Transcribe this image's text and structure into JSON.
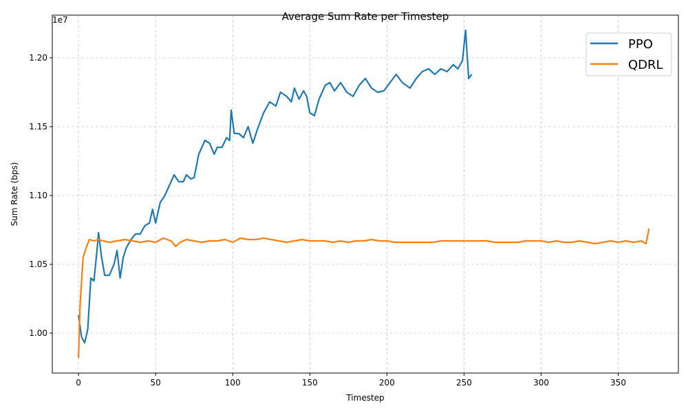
{
  "chart_data": {
    "type": "line",
    "title": "Average Sum Rate per Timestep",
    "xlabel": "Timestep",
    "ylabel": "Sum Rate (bps)",
    "y_offset_label": "1e7",
    "xlim": [
      -17,
      389
    ],
    "ylim": [
      9.71,
      12.31
    ],
    "y_scale_exponent": 7,
    "xticks": [
      0,
      50,
      100,
      150,
      200,
      250,
      300,
      350
    ],
    "yticks": [
      10.0,
      10.5,
      11.0,
      11.5,
      12.0
    ],
    "ytick_labels": [
      "1.00",
      "1.05",
      "1.10",
      "1.15",
      "1.20"
    ],
    "grid": true,
    "legend_position": "top-right",
    "series": [
      {
        "name": "PPO",
        "color": "#1f77b4",
        "points": [
          [
            0,
            10.13
          ],
          [
            2,
            9.97
          ],
          [
            4,
            9.93
          ],
          [
            6,
            10.03
          ],
          [
            8,
            10.4
          ],
          [
            10,
            10.38
          ],
          [
            12,
            10.6
          ],
          [
            13,
            10.73
          ],
          [
            15,
            10.55
          ],
          [
            17,
            10.42
          ],
          [
            20,
            10.42
          ],
          [
            23,
            10.5
          ],
          [
            25,
            10.6
          ],
          [
            27,
            10.4
          ],
          [
            29,
            10.55
          ],
          [
            31,
            10.62
          ],
          [
            34,
            10.68
          ],
          [
            37,
            10.72
          ],
          [
            40,
            10.72
          ],
          [
            43,
            10.78
          ],
          [
            46,
            10.8
          ],
          [
            48,
            10.9
          ],
          [
            50,
            10.8
          ],
          [
            53,
            10.95
          ],
          [
            56,
            11.0
          ],
          [
            58,
            11.05
          ],
          [
            60,
            11.1
          ],
          [
            62,
            11.15
          ],
          [
            65,
            11.1
          ],
          [
            68,
            11.1
          ],
          [
            70,
            11.15
          ],
          [
            73,
            11.12
          ],
          [
            75,
            11.13
          ],
          [
            78,
            11.3
          ],
          [
            82,
            11.4
          ],
          [
            85,
            11.38
          ],
          [
            88,
            11.3
          ],
          [
            90,
            11.35
          ],
          [
            93,
            11.35
          ],
          [
            96,
            11.42
          ],
          [
            98,
            11.4
          ],
          [
            99,
            11.62
          ],
          [
            101,
            11.45
          ],
          [
            104,
            11.45
          ],
          [
            107,
            11.42
          ],
          [
            110,
            11.5
          ],
          [
            113,
            11.38
          ],
          [
            116,
            11.48
          ],
          [
            120,
            11.6
          ],
          [
            124,
            11.68
          ],
          [
            128,
            11.65
          ],
          [
            131,
            11.75
          ],
          [
            135,
            11.72
          ],
          [
            138,
            11.68
          ],
          [
            140,
            11.78
          ],
          [
            143,
            11.7
          ],
          [
            146,
            11.76
          ],
          [
            148,
            11.72
          ],
          [
            150,
            11.6
          ],
          [
            153,
            11.58
          ],
          [
            156,
            11.7
          ],
          [
            160,
            11.8
          ],
          [
            163,
            11.82
          ],
          [
            166,
            11.76
          ],
          [
            170,
            11.82
          ],
          [
            174,
            11.75
          ],
          [
            178,
            11.72
          ],
          [
            182,
            11.8
          ],
          [
            186,
            11.85
          ],
          [
            190,
            11.78
          ],
          [
            194,
            11.75
          ],
          [
            198,
            11.76
          ],
          [
            202,
            11.82
          ],
          [
            206,
            11.88
          ],
          [
            210,
            11.82
          ],
          [
            215,
            11.78
          ],
          [
            219,
            11.85
          ],
          [
            223,
            11.9
          ],
          [
            227,
            11.92
          ],
          [
            231,
            11.88
          ],
          [
            235,
            11.92
          ],
          [
            239,
            11.9
          ],
          [
            243,
            11.95
          ],
          [
            246,
            11.92
          ],
          [
            249,
            11.98
          ],
          [
            251,
            12.2
          ],
          [
            253,
            11.85
          ],
          [
            255,
            11.88
          ]
        ]
      },
      {
        "name": "QDRL",
        "color": "#ff7f0e",
        "points": [
          [
            0,
            9.82
          ],
          [
            1,
            10.2
          ],
          [
            3,
            10.55
          ],
          [
            5,
            10.62
          ],
          [
            7,
            10.68
          ],
          [
            10,
            10.67
          ],
          [
            13,
            10.68
          ],
          [
            16,
            10.67
          ],
          [
            20,
            10.66
          ],
          [
            25,
            10.67
          ],
          [
            30,
            10.68
          ],
          [
            35,
            10.67
          ],
          [
            40,
            10.66
          ],
          [
            45,
            10.67
          ],
          [
            50,
            10.66
          ],
          [
            55,
            10.69
          ],
          [
            60,
            10.67
          ],
          [
            63,
            10.63
          ],
          [
            66,
            10.66
          ],
          [
            70,
            10.68
          ],
          [
            75,
            10.67
          ],
          [
            80,
            10.66
          ],
          [
            85,
            10.67
          ],
          [
            90,
            10.67
          ],
          [
            95,
            10.68
          ],
          [
            100,
            10.66
          ],
          [
            105,
            10.69
          ],
          [
            110,
            10.68
          ],
          [
            115,
            10.68
          ],
          [
            120,
            10.69
          ],
          [
            125,
            10.68
          ],
          [
            130,
            10.67
          ],
          [
            135,
            10.66
          ],
          [
            140,
            10.67
          ],
          [
            145,
            10.68
          ],
          [
            150,
            10.67
          ],
          [
            155,
            10.67
          ],
          [
            160,
            10.67
          ],
          [
            165,
            10.66
          ],
          [
            170,
            10.67
          ],
          [
            175,
            10.66
          ],
          [
            180,
            10.67
          ],
          [
            185,
            10.67
          ],
          [
            190,
            10.68
          ],
          [
            195,
            10.67
          ],
          [
            200,
            10.67
          ],
          [
            205,
            10.66
          ],
          [
            210,
            10.66
          ],
          [
            215,
            10.66
          ],
          [
            220,
            10.66
          ],
          [
            225,
            10.66
          ],
          [
            230,
            10.66
          ],
          [
            235,
            10.67
          ],
          [
            240,
            10.67
          ],
          [
            245,
            10.67
          ],
          [
            250,
            10.67
          ],
          [
            255,
            10.67
          ],
          [
            260,
            10.67
          ],
          [
            265,
            10.67
          ],
          [
            270,
            10.66
          ],
          [
            275,
            10.66
          ],
          [
            280,
            10.66
          ],
          [
            285,
            10.66
          ],
          [
            290,
            10.67
          ],
          [
            295,
            10.67
          ],
          [
            300,
            10.67
          ],
          [
            305,
            10.66
          ],
          [
            310,
            10.67
          ],
          [
            315,
            10.66
          ],
          [
            320,
            10.66
          ],
          [
            325,
            10.67
          ],
          [
            330,
            10.66
          ],
          [
            335,
            10.65
          ],
          [
            340,
            10.66
          ],
          [
            345,
            10.67
          ],
          [
            350,
            10.66
          ],
          [
            355,
            10.67
          ],
          [
            360,
            10.66
          ],
          [
            365,
            10.67
          ],
          [
            368,
            10.65
          ],
          [
            370,
            10.76
          ]
        ]
      }
    ]
  }
}
